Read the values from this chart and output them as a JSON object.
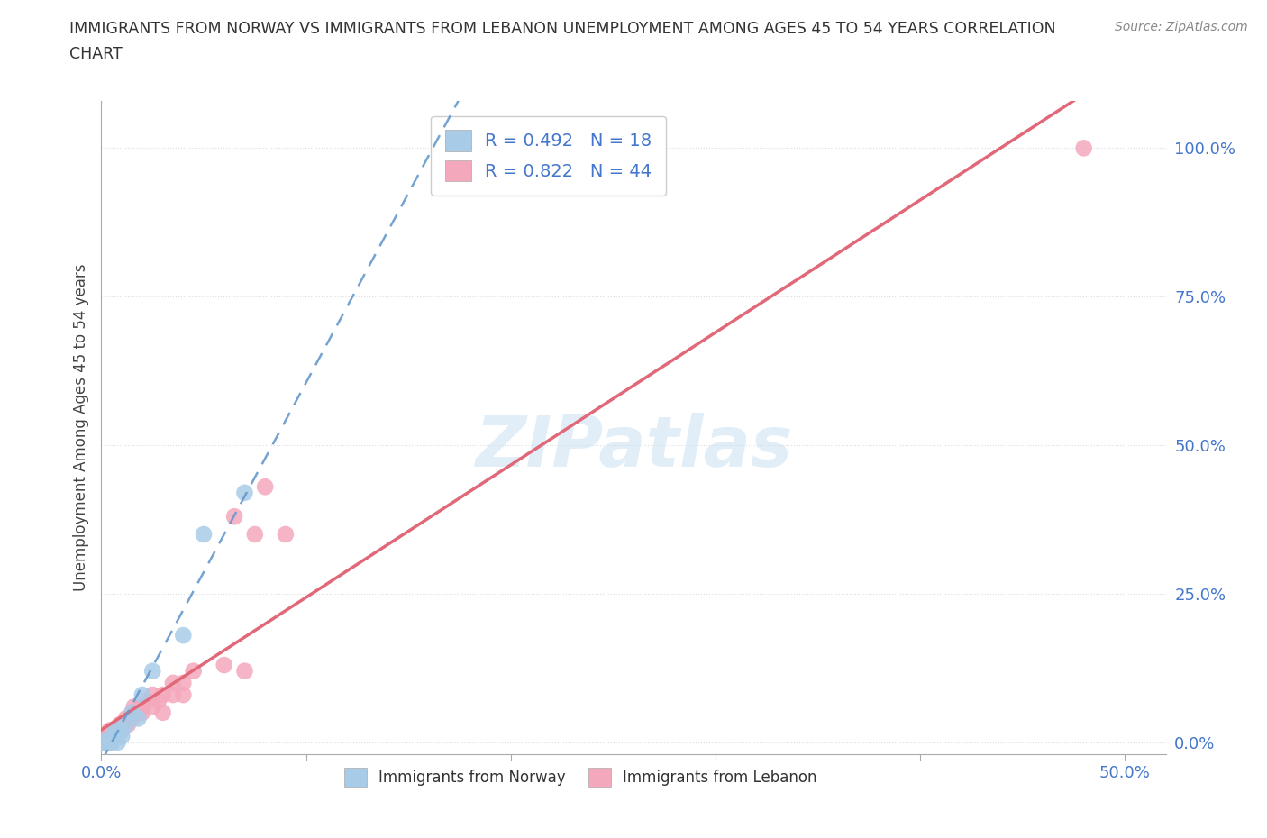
{
  "title_line1": "IMMIGRANTS FROM NORWAY VS IMMIGRANTS FROM LEBANON UNEMPLOYMENT AMONG AGES 45 TO 54 YEARS CORRELATION",
  "title_line2": "CHART",
  "source": "Source: ZipAtlas.com",
  "ylabel": "Unemployment Among Ages 45 to 54 years",
  "xlim": [
    0.0,
    0.52
  ],
  "ylim": [
    -0.02,
    1.08
  ],
  "xticks": [
    0.0,
    0.1,
    0.2,
    0.3,
    0.4,
    0.5
  ],
  "xticklabels": [
    "0.0%",
    "",
    "",
    "",
    "",
    "50.0%"
  ],
  "yticks": [
    0.0,
    0.25,
    0.5,
    0.75,
    1.0
  ],
  "yticklabels": [
    "0.0%",
    "25.0%",
    "50.0%",
    "75.0%",
    "100.0%"
  ],
  "norway_color": "#a8cce8",
  "lebanon_color": "#f4a8bc",
  "norway_R": 0.492,
  "norway_N": 18,
  "lebanon_R": 0.822,
  "lebanon_N": 44,
  "norway_line_color": "#6699cc",
  "lebanon_line_color": "#e06878",
  "watermark": "ZIPatlas",
  "norway_points_x": [
    0.0,
    0.0,
    0.002,
    0.003,
    0.005,
    0.005,
    0.007,
    0.008,
    0.01,
    0.01,
    0.012,
    0.015,
    0.018,
    0.02,
    0.025,
    0.04,
    0.05,
    0.07
  ],
  "norway_points_y": [
    0.0,
    0.0,
    0.0,
    0.0,
    0.0,
    0.01,
    0.02,
    0.0,
    0.01,
    0.02,
    0.03,
    0.05,
    0.04,
    0.08,
    0.12,
    0.18,
    0.35,
    0.42
  ],
  "lebanon_points_x": [
    0.0,
    0.0,
    0.0,
    0.0,
    0.001,
    0.002,
    0.002,
    0.003,
    0.003,
    0.004,
    0.005,
    0.005,
    0.006,
    0.007,
    0.008,
    0.009,
    0.01,
    0.01,
    0.012,
    0.013,
    0.015,
    0.015,
    0.016,
    0.018,
    0.02,
    0.02,
    0.022,
    0.025,
    0.025,
    0.028,
    0.03,
    0.03,
    0.035,
    0.035,
    0.04,
    0.04,
    0.045,
    0.06,
    0.065,
    0.07,
    0.075,
    0.08,
    0.09,
    0.48
  ],
  "lebanon_points_y": [
    0.0,
    0.0,
    0.0,
    0.01,
    0.0,
    0.0,
    0.01,
    0.0,
    0.01,
    0.02,
    0.0,
    0.01,
    0.02,
    0.01,
    0.02,
    0.03,
    0.02,
    0.03,
    0.04,
    0.03,
    0.04,
    0.05,
    0.06,
    0.05,
    0.05,
    0.06,
    0.07,
    0.06,
    0.08,
    0.07,
    0.05,
    0.08,
    0.08,
    0.1,
    0.1,
    0.08,
    0.12,
    0.13,
    0.38,
    0.12,
    0.35,
    0.43,
    0.35,
    1.0
  ],
  "background_color": "#ffffff",
  "grid_color": "#dddddd",
  "legend_label_norway": "Immigrants from Norway",
  "legend_label_lebanon": "Immigrants from Lebanon",
  "stat_color": "#4477cc",
  "ytick_right": true
}
